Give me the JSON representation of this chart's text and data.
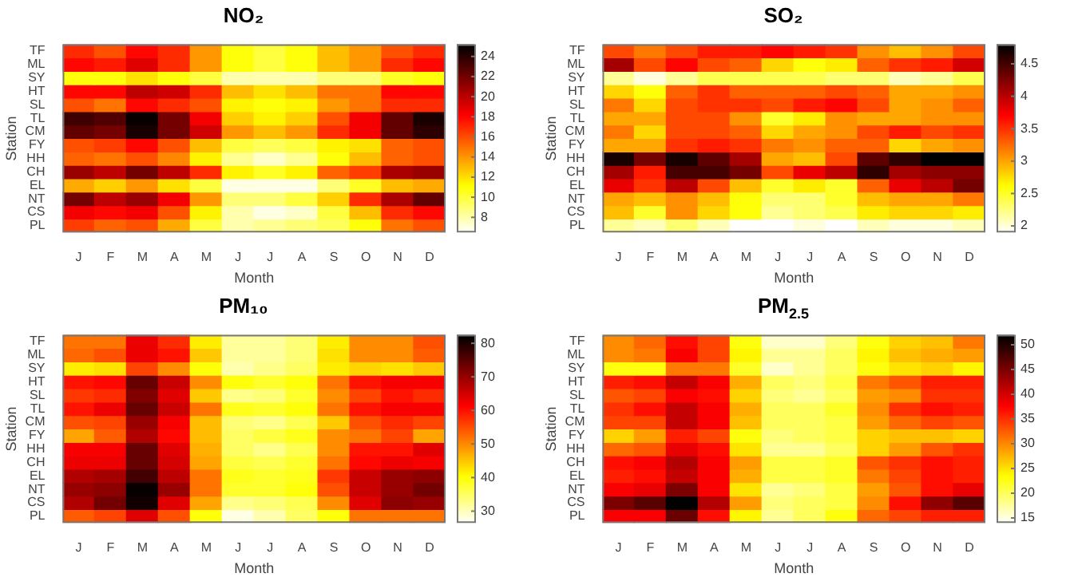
{
  "chart_data": [
    {
      "type": "heatmap",
      "title": "NO₂",
      "xlabel": "Month",
      "ylabel": "Station",
      "categories": [
        "J",
        "F",
        "M",
        "A",
        "M",
        "J",
        "J",
        "A",
        "S",
        "O",
        "N",
        "D"
      ],
      "y_categories": [
        "TF",
        "ML",
        "SY",
        "HT",
        "SL",
        "TL",
        "CM",
        "FY",
        "HH",
        "CH",
        "EL",
        "NT",
        "CS",
        "PL"
      ],
      "cells": [
        [
          17,
          16,
          18,
          17,
          14,
          11,
          10,
          11,
          13,
          14,
          16,
          17
        ],
        [
          18,
          17.5,
          19,
          17,
          14,
          11,
          10,
          11,
          13,
          14,
          17,
          18
        ],
        [
          11,
          11,
          12,
          11,
          10,
          8,
          8,
          8,
          9,
          9,
          10.5,
          11
        ],
        [
          18,
          18,
          20,
          19.5,
          17,
          13,
          12,
          13,
          15,
          15,
          18,
          18
        ],
        [
          16,
          15,
          18,
          17,
          16,
          11.5,
          11,
          11.5,
          14,
          15,
          17,
          17
        ],
        [
          23.5,
          23,
          25,
          22,
          18.5,
          12.5,
          11.5,
          12.5,
          16,
          18.5,
          22.5,
          24.5
        ],
        [
          22.5,
          22,
          24.5,
          22,
          19.5,
          14,
          13,
          14,
          17,
          18.5,
          22.5,
          24
        ],
        [
          16,
          16.5,
          18,
          16,
          13,
          10,
          9.5,
          10,
          11.5,
          12,
          15.5,
          16
        ],
        [
          15.5,
          15,
          16,
          14.5,
          11.5,
          8.5,
          7.5,
          8.5,
          11,
          13,
          15.5,
          16
        ],
        [
          21,
          20,
          22,
          20,
          17,
          11.5,
          10.5,
          11.5,
          15.5,
          16.5,
          20.5,
          21
        ],
        [
          13.5,
          12.5,
          14,
          12,
          10,
          7,
          7,
          7,
          9,
          10.5,
          13,
          13.5
        ],
        [
          22,
          20,
          21,
          18.5,
          14,
          9,
          9,
          10,
          12.5,
          17,
          20.5,
          22.5
        ],
        [
          18.5,
          18,
          18.5,
          16,
          11.5,
          8,
          7,
          7.5,
          10,
          13,
          17,
          18
        ],
        [
          16.5,
          15.5,
          16,
          13.5,
          10,
          8,
          8.5,
          9,
          9.5,
          11,
          15,
          16
        ]
      ],
      "clim": [
        6.5,
        25.2
      ],
      "cticks": [
        8,
        10,
        12,
        14,
        16,
        18,
        20,
        22,
        24
      ]
    },
    {
      "type": "heatmap",
      "title": "SO₂",
      "xlabel": "Month",
      "ylabel": "Station",
      "categories": [
        "J",
        "F",
        "M",
        "A",
        "M",
        "J",
        "J",
        "A",
        "S",
        "O",
        "N",
        "D"
      ],
      "y_categories": [
        "TF",
        "ML",
        "SY",
        "HT",
        "SL",
        "TL",
        "CM",
        "FY",
        "HH",
        "CH",
        "EL",
        "NT",
        "CS",
        "PL"
      ],
      "cells": [
        [
          3.4,
          3.2,
          3.4,
          3.6,
          3.6,
          3.7,
          3.6,
          3.5,
          3.1,
          2.9,
          3.1,
          3.4
        ],
        [
          4.1,
          3.4,
          3.7,
          3.4,
          3.3,
          2.8,
          2.6,
          2.7,
          3.3,
          3.5,
          3.6,
          3.9
        ],
        [
          2.2,
          2.0,
          2.2,
          2.4,
          2.4,
          2.4,
          2.4,
          2.3,
          2.3,
          2.1,
          2.2,
          2.4
        ],
        [
          2.8,
          2.6,
          3.3,
          3.5,
          3.3,
          3.3,
          3.3,
          3.4,
          3.3,
          3.0,
          3.0,
          3.1
        ],
        [
          3.2,
          2.8,
          3.4,
          3.5,
          3.5,
          3.4,
          3.6,
          3.7,
          3.4,
          3.0,
          3.1,
          3.3
        ],
        [
          3.0,
          3.0,
          3.4,
          3.4,
          3.1,
          2.5,
          2.7,
          3.1,
          3.0,
          3.0,
          3.1,
          3.1
        ],
        [
          3.2,
          2.8,
          3.4,
          3.4,
          3.3,
          2.8,
          3.0,
          3.1,
          3.4,
          3.6,
          3.4,
          3.5
        ],
        [
          3.0,
          3.0,
          3.5,
          3.6,
          3.5,
          3.2,
          3.1,
          3.3,
          3.3,
          2.8,
          3.0,
          3.1
        ],
        [
          4.7,
          4.3,
          4.7,
          4.4,
          4.1,
          3.0,
          2.9,
          3.4,
          4.4,
          4.6,
          4.8,
          4.8
        ],
        [
          4.1,
          3.6,
          4.5,
          4.5,
          4.3,
          3.4,
          3.8,
          4.0,
          4.6,
          4.1,
          4.2,
          4.2
        ],
        [
          3.8,
          3.5,
          4.0,
          3.4,
          2.9,
          2.5,
          2.7,
          2.5,
          3.3,
          3.8,
          4.0,
          4.3
        ],
        [
          3.0,
          2.9,
          3.1,
          2.9,
          2.6,
          2.3,
          2.3,
          2.5,
          2.9,
          3.0,
          3.0,
          3.2
        ],
        [
          2.9,
          2.5,
          3.1,
          2.8,
          2.6,
          2.2,
          2.3,
          2.4,
          2.7,
          2.8,
          2.8,
          2.7
        ],
        [
          2.2,
          2.1,
          2.3,
          2.1,
          1.9,
          1.9,
          2.0,
          1.9,
          2.1,
          2.0,
          2.0,
          2.1
        ]
      ],
      "clim": [
        1.9,
        4.8
      ],
      "cticks": [
        2,
        2.5,
        3,
        3.5,
        4,
        4.5
      ]
    },
    {
      "type": "heatmap",
      "title": "PM₁₀",
      "xlabel": "Month",
      "ylabel": "Station",
      "categories": [
        "J",
        "F",
        "M",
        "A",
        "M",
        "J",
        "J",
        "A",
        "S",
        "O",
        "N",
        "D"
      ],
      "y_categories": [
        "TF",
        "ML",
        "SY",
        "HT",
        "SL",
        "TL",
        "CM",
        "FY",
        "HH",
        "CH",
        "EL",
        "NT",
        "CS",
        "PL"
      ],
      "cells": [
        [
          52,
          52,
          63,
          58,
          42,
          32,
          32,
          34,
          42,
          50,
          50,
          55
        ],
        [
          53,
          55,
          63,
          60,
          45,
          32,
          32,
          34,
          43,
          50,
          50,
          54
        ],
        [
          42,
          43,
          56,
          50,
          40,
          31,
          33,
          35,
          42,
          44,
          43,
          45
        ],
        [
          60,
          61,
          74,
          66,
          50,
          40,
          38,
          40,
          52,
          60,
          62,
          62
        ],
        [
          57,
          58,
          72,
          64,
          45,
          33,
          34,
          38,
          50,
          56,
          60,
          58
        ],
        [
          60,
          63,
          74,
          66,
          52,
          39,
          38,
          40,
          52,
          60,
          62,
          62
        ],
        [
          55,
          56,
          70,
          62,
          46,
          34,
          33,
          36,
          45,
          55,
          58,
          56
        ],
        [
          48,
          54,
          68,
          61,
          46,
          35,
          37,
          39,
          50,
          52,
          56,
          48
        ],
        [
          62,
          62,
          74,
          64,
          47,
          35,
          33,
          36,
          50,
          60,
          60,
          64
        ],
        [
          63,
          63,
          74,
          65,
          48,
          37,
          36,
          38,
          52,
          61,
          63,
          62
        ],
        [
          68,
          69,
          77,
          67,
          52,
          39,
          38,
          39,
          57,
          66,
          70,
          71
        ],
        [
          70,
          71,
          82,
          70,
          52,
          38,
          38,
          40,
          55,
          66,
          70,
          73
        ],
        [
          68,
          73,
          81,
          64,
          48,
          33,
          34,
          36,
          50,
          64,
          71,
          70
        ],
        [
          54,
          56,
          64,
          55,
          40,
          28,
          31,
          35,
          40,
          52,
          52,
          52
        ]
      ],
      "clim": [
        26.5,
        82.5
      ],
      "cticks": [
        30,
        40,
        50,
        60,
        70,
        80
      ]
    },
    {
      "type": "heatmap",
      "title": "PM$_{2.5}$",
      "xlabel": "Month",
      "ylabel": "Station",
      "categories": [
        "J",
        "F",
        "M",
        "A",
        "M",
        "J",
        "J",
        "A",
        "S",
        "O",
        "N",
        "D"
      ],
      "y_categories": [
        "TF",
        "ML",
        "SY",
        "HT",
        "SL",
        "TL",
        "CM",
        "FY",
        "HH",
        "CH",
        "EL",
        "NT",
        "CS",
        "PL"
      ],
      "cells": [
        [
          30,
          32,
          37,
          34,
          23,
          16,
          16,
          19,
          23,
          26,
          27,
          31
        ],
        [
          30,
          31,
          38,
          34,
          24,
          18,
          18,
          20,
          24,
          27,
          28,
          29
        ],
        [
          23,
          23,
          31,
          31,
          22,
          16,
          18,
          20,
          23,
          25,
          26,
          24
        ],
        [
          36,
          37,
          41,
          38,
          28,
          20,
          19,
          21,
          31,
          33,
          36,
          36
        ],
        [
          33,
          34,
          38,
          37,
          26,
          19,
          18,
          20,
          29,
          30,
          35,
          35
        ],
        [
          35,
          37,
          41,
          38,
          28,
          20,
          20,
          22,
          30,
          35,
          37,
          36
        ],
        [
          34,
          34,
          41,
          38,
          27,
          20,
          20,
          21,
          29,
          32,
          34,
          33
        ],
        [
          26,
          29,
          36,
          34,
          23,
          19,
          20,
          21,
          26,
          27,
          27,
          26
        ],
        [
          32,
          33,
          39,
          37,
          25,
          18,
          18,
          20,
          26,
          29,
          33,
          35
        ],
        [
          37,
          38,
          42,
          38,
          29,
          21,
          21,
          22,
          33,
          35,
          37,
          36
        ],
        [
          36,
          37,
          41,
          38,
          28,
          21,
          21,
          22,
          31,
          34,
          37,
          36
        ],
        [
          38,
          39,
          45,
          38,
          25,
          18,
          19,
          21,
          29,
          33,
          37,
          39
        ],
        [
          45,
          47,
          52,
          42,
          29,
          19,
          20,
          21,
          30,
          37,
          44,
          47
        ],
        [
          38,
          38,
          46,
          37,
          24,
          18,
          20,
          23,
          32,
          34,
          36,
          36
        ]
      ],
      "clim": [
        14,
        52
      ],
      "cticks": [
        15,
        20,
        25,
        30,
        35,
        40,
        45,
        50
      ]
    }
  ]
}
